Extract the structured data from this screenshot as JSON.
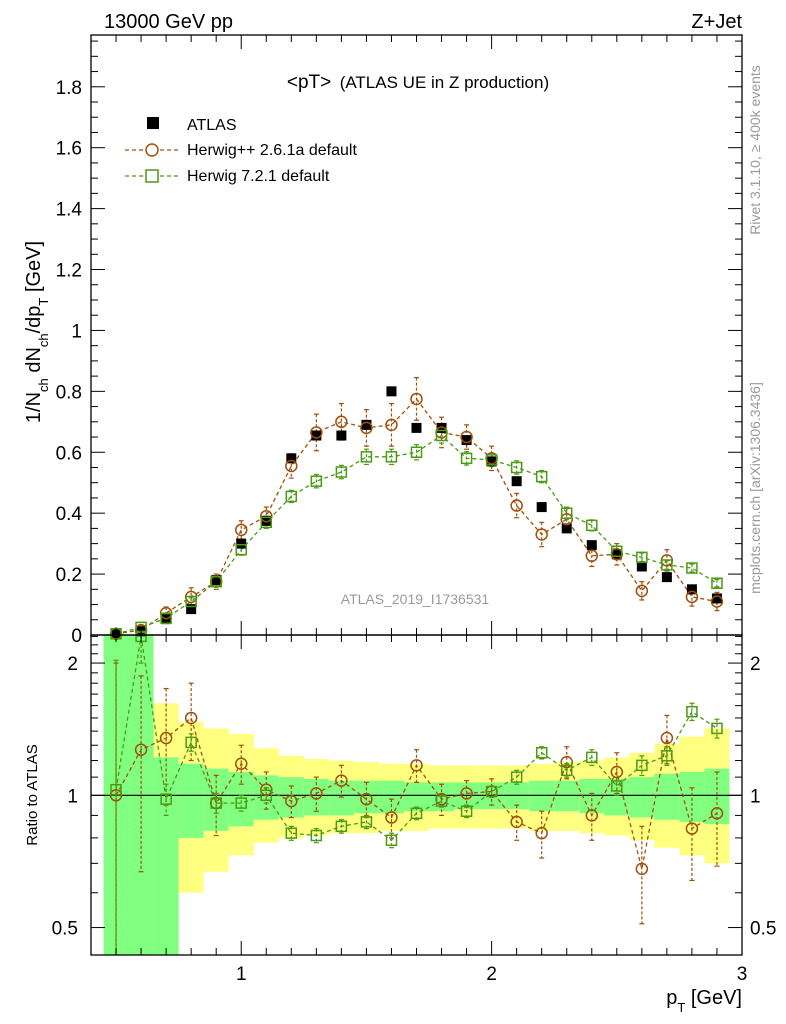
{
  "header": {
    "left": "13000 GeV pp",
    "right": "Z+Jet"
  },
  "side": {
    "top": "Rivet 3.1.10, ≥ 400k events",
    "bottom": "mcplots.cern.ch [arXiv:1306.3436]"
  },
  "colors": {
    "atlas": "#000000",
    "herwigpp": "#a0500a",
    "herwig7": "#4a9a14",
    "band_inner": "#80ff80",
    "band_outer": "#ffff80"
  },
  "chart_data": [
    {
      "type": "scatter",
      "title_main": "<pT>",
      "title_sub": "(ATLAS UE in Z production)",
      "ylabel": "1/N_ch dN_ch/dp_T [GeV]",
      "ylabel_parts": {
        "a": "1/N",
        "b": "ch",
        "c": " dN",
        "d": "ch",
        "e": "/dp",
        "f": "T",
        "g": " [GeV]"
      },
      "watermark": "ATLAS_2019_I1736531",
      "xlim": [
        0.4,
        3.0
      ],
      "ylim": [
        0,
        1.97
      ],
      "yticks": [
        0,
        0.2,
        0.4,
        0.6,
        0.8,
        1,
        1.2,
        1.4,
        1.6,
        1.8
      ],
      "ytick_labels": [
        "0",
        "0.2",
        "0.4",
        "0.6",
        "0.8",
        "1",
        "1.2",
        "1.4",
        "1.6",
        "1.8"
      ],
      "legend_position": "top-left",
      "series": [
        {
          "name": "ATLAS",
          "marker": "filled-square",
          "x": [
            0.5,
            0.6,
            0.7,
            0.8,
            0.9,
            1.0,
            1.1,
            1.2,
            1.3,
            1.4,
            1.5,
            1.6,
            1.7,
            1.8,
            1.9,
            2.0,
            2.1,
            2.2,
            2.3,
            2.4,
            2.5,
            2.6,
            2.7,
            2.8,
            2.9
          ],
          "y": [
            0.004,
            0.012,
            0.052,
            0.085,
            0.18,
            0.3,
            0.375,
            0.58,
            0.655,
            0.655,
            0.69,
            0.8,
            0.68,
            0.68,
            0.64,
            0.57,
            0.505,
            0.42,
            0.35,
            0.295,
            0.265,
            0.225,
            0.19,
            0.15,
            0.12
          ]
        },
        {
          "name": "Herwig++ 2.6.1a default",
          "marker": "open-circle",
          "x": [
            0.5,
            0.6,
            0.7,
            0.8,
            0.9,
            1.0,
            1.1,
            1.2,
            1.3,
            1.4,
            1.5,
            1.6,
            1.7,
            1.8,
            1.9,
            2.0,
            2.1,
            2.2,
            2.3,
            2.4,
            2.5,
            2.6,
            2.7,
            2.8,
            2.9
          ],
          "y": [
            0.004,
            0.016,
            0.072,
            0.125,
            0.175,
            0.345,
            0.39,
            0.555,
            0.665,
            0.7,
            0.68,
            0.69,
            0.775,
            0.665,
            0.65,
            0.58,
            0.425,
            0.33,
            0.38,
            0.26,
            0.265,
            0.145,
            0.245,
            0.125,
            0.11
          ],
          "err": [
            0.003,
            0.012,
            0.02,
            0.03,
            0.025,
            0.03,
            0.03,
            0.04,
            0.06,
            0.06,
            0.06,
            0.07,
            0.07,
            0.05,
            0.04,
            0.04,
            0.04,
            0.04,
            0.035,
            0.035,
            0.035,
            0.03,
            0.035,
            0.03,
            0.03
          ]
        },
        {
          "name": "Herwig 7.2.1 default",
          "marker": "open-square",
          "x": [
            0.5,
            0.6,
            0.7,
            0.8,
            0.9,
            1.0,
            1.1,
            1.2,
            1.3,
            1.4,
            1.5,
            1.6,
            1.7,
            1.8,
            1.9,
            2.0,
            2.1,
            2.2,
            2.3,
            2.4,
            2.5,
            2.6,
            2.7,
            2.8,
            2.9
          ],
          "y": [
            0.004,
            0.025,
            0.055,
            0.11,
            0.175,
            0.28,
            0.37,
            0.455,
            0.505,
            0.535,
            0.585,
            0.585,
            0.6,
            0.655,
            0.58,
            0.575,
            0.55,
            0.52,
            0.4,
            0.36,
            0.275,
            0.255,
            0.23,
            0.22,
            0.17
          ],
          "err": [
            0.002,
            0.006,
            0.01,
            0.012,
            0.015,
            0.018,
            0.02,
            0.02,
            0.022,
            0.022,
            0.025,
            0.025,
            0.025,
            0.025,
            0.022,
            0.022,
            0.022,
            0.02,
            0.02,
            0.018,
            0.016,
            0.014,
            0.014,
            0.013,
            0.012
          ]
        }
      ]
    },
    {
      "type": "scatter",
      "ylabel": "Ratio to ATLAS",
      "xlabel_parts": {
        "a": "p",
        "b": "T",
        "c": " [GeV]"
      },
      "xlim": [
        0.4,
        3.0
      ],
      "ylim": [
        0.433,
        2.317
      ],
      "yscale": "log",
      "yticks": [
        0.5,
        1,
        2
      ],
      "ytick_labels": [
        "0.5",
        "1",
        "2"
      ],
      "xticks": [
        1,
        2,
        3
      ],
      "xtick_labels": [
        "1",
        "2",
        "3"
      ],
      "reference_line": 1,
      "bands": {
        "edges": [
          0.45,
          0.55,
          0.65,
          0.75,
          0.85,
          0.95,
          1.05,
          1.15,
          1.25,
          1.35,
          1.45,
          1.55,
          1.65,
          1.75,
          1.85,
          1.95,
          2.05,
          2.15,
          2.25,
          2.35,
          2.45,
          2.55,
          2.65,
          2.75,
          2.85,
          2.95
        ],
        "stat": {
          "lo": [
            0.2,
            0.2,
            0.2,
            0.8,
            0.83,
            0.85,
            0.88,
            0.89,
            0.9,
            0.9,
            0.91,
            0.91,
            0.92,
            0.92,
            0.93,
            0.93,
            0.93,
            0.92,
            0.92,
            0.91,
            0.9,
            0.89,
            0.88,
            0.87,
            0.86
          ],
          "hi": [
            2.5,
            2.5,
            1.22,
            1.18,
            1.15,
            1.13,
            1.11,
            1.1,
            1.09,
            1.08,
            1.08,
            1.08,
            1.07,
            1.07,
            1.07,
            1.07,
            1.07,
            1.08,
            1.08,
            1.09,
            1.09,
            1.1,
            1.12,
            1.13,
            1.15
          ]
        },
        "total": {
          "lo": [
            0.2,
            0.2,
            0.4,
            0.6,
            0.67,
            0.73,
            0.78,
            0.8,
            0.81,
            0.82,
            0.82,
            0.83,
            0.83,
            0.84,
            0.84,
            0.84,
            0.84,
            0.83,
            0.83,
            0.82,
            0.81,
            0.79,
            0.76,
            0.73,
            0.7
          ],
          "hi": [
            2.5,
            2.5,
            1.62,
            1.47,
            1.42,
            1.38,
            1.28,
            1.23,
            1.21,
            1.2,
            1.19,
            1.18,
            1.18,
            1.17,
            1.17,
            1.17,
            1.17,
            1.18,
            1.19,
            1.2,
            1.22,
            1.25,
            1.31,
            1.36,
            1.42
          ]
        }
      },
      "series": [
        {
          "name": "Herwig++ 2.6.1a default",
          "x": [
            0.5,
            0.6,
            0.7,
            0.8,
            0.9,
            1.0,
            1.1,
            1.2,
            1.3,
            1.4,
            1.5,
            1.6,
            1.7,
            1.8,
            1.9,
            2.0,
            2.1,
            2.2,
            2.3,
            2.4,
            2.5,
            2.6,
            2.7,
            2.8,
            2.9
          ],
          "y": [
            1.0,
            1.27,
            1.35,
            1.5,
            0.96,
            1.18,
            1.03,
            0.97,
            1.01,
            1.08,
            0.98,
            0.89,
            1.17,
            0.98,
            1.01,
            1.02,
            0.87,
            0.82,
            1.19,
            0.9,
            1.13,
            0.68,
            1.35,
            0.84,
            0.91
          ],
          "err": [
            1.0,
            0.6,
            0.4,
            0.3,
            0.15,
            0.12,
            0.1,
            0.08,
            0.09,
            0.09,
            0.09,
            0.09,
            0.1,
            0.08,
            0.07,
            0.07,
            0.08,
            0.1,
            0.1,
            0.11,
            0.12,
            0.17,
            0.17,
            0.2,
            0.22
          ]
        },
        {
          "name": "Herwig 7.2.1 default",
          "x": [
            0.5,
            0.6,
            0.7,
            0.8,
            0.9,
            1.0,
            1.1,
            1.2,
            1.3,
            1.4,
            1.5,
            1.6,
            1.7,
            1.8,
            1.9,
            2.0,
            2.1,
            2.2,
            2.3,
            2.4,
            2.5,
            2.6,
            2.7,
            2.8,
            2.9
          ],
          "y": [
            1.03,
            2.3,
            0.98,
            1.32,
            0.96,
            0.96,
            1.0,
            0.82,
            0.81,
            0.85,
            0.87,
            0.79,
            0.91,
            0.97,
            0.92,
            1.02,
            1.1,
            1.25,
            1.14,
            1.22,
            1.05,
            1.17,
            1.23,
            1.55,
            1.42
          ],
          "err": [
            1.0,
            0.3,
            0.08,
            0.06,
            0.05,
            0.04,
            0.04,
            0.03,
            0.03,
            0.03,
            0.03,
            0.03,
            0.03,
            0.03,
            0.03,
            0.03,
            0.04,
            0.04,
            0.04,
            0.05,
            0.05,
            0.06,
            0.06,
            0.07,
            0.07
          ]
        }
      ]
    }
  ]
}
